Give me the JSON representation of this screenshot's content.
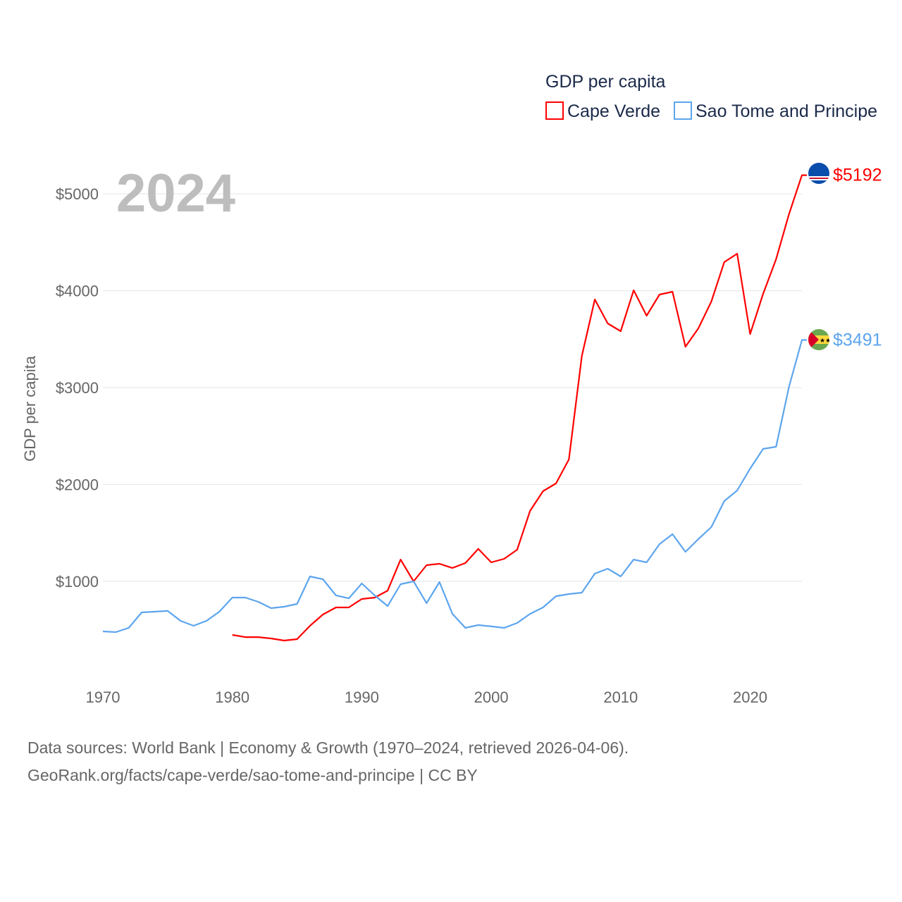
{
  "chart_data": {
    "type": "line",
    "title": "GDP per capita",
    "year_label": "2024",
    "xlabel": "",
    "ylabel": "GDP per capita",
    "xlim": [
      1970,
      2024
    ],
    "ylim": [
      0,
      5500
    ],
    "x_ticks": [
      1970,
      1980,
      1990,
      2000,
      2010,
      2020
    ],
    "y_ticks": [
      1000,
      2000,
      3000,
      4000,
      5000
    ],
    "y_tick_labels": [
      "$1000",
      "$2000",
      "$3000",
      "$4000",
      "$5000"
    ],
    "grid": true,
    "legend_position": "top-right",
    "series": [
      {
        "name": "Cape Verde",
        "color": "#ff0000",
        "end_label": "$5192",
        "start_year": 1980,
        "values": [
          447,
          425,
          425,
          411,
          389,
          404,
          542,
          658,
          731,
          731,
          818,
          833,
          905,
          1225,
          1000,
          1167,
          1182,
          1138,
          1189,
          1335,
          1196,
          1233,
          1327,
          1727,
          1931,
          2011,
          2258,
          3327,
          3909,
          3662,
          3582,
          4004,
          3742,
          3960,
          3989,
          3422,
          3611,
          3887,
          4295,
          4382,
          3553,
          3967,
          4324,
          4789,
          5192
        ]
      },
      {
        "name": "Sao Tome and Principe",
        "color": "#5da5ee",
        "end_label": "$3491",
        "start_year": 1970,
        "values": [
          484,
          476,
          520,
          680,
          687,
          695,
          593,
          542,
          593,
          687,
          833,
          833,
          789,
          724,
          738,
          767,
          1051,
          1022,
          855,
          825,
          978,
          855,
          745,
          971,
          1000,
          775,
          993,
          665,
          520,
          549,
          535,
          520,
          571,
          665,
          731,
          847,
          869,
          884,
          1080,
          1131,
          1051,
          1225,
          1196,
          1385,
          1487,
          1305,
          1436,
          1560,
          1829,
          1938,
          2164,
          2367,
          2389,
          3007,
          3491
        ]
      }
    ]
  },
  "footer": {
    "line1": "Data sources: World Bank | Economy & Growth (1970–2024, retrieved 2026-04-06).",
    "line2": "GeoRank.org/facts/cape-verde/sao-tome-and-principe | CC BY"
  }
}
